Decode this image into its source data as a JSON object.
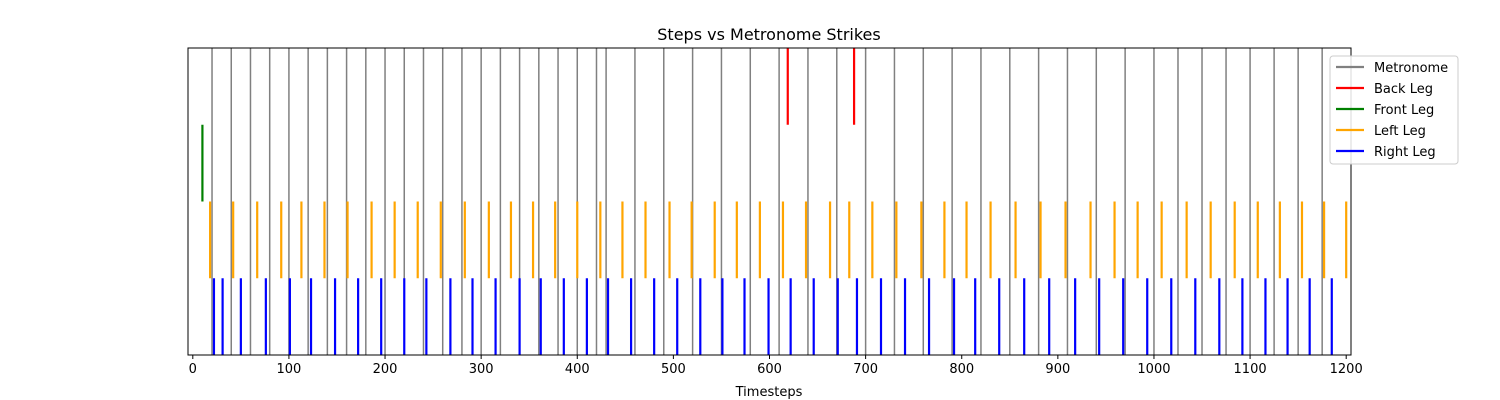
{
  "chart_data": {
    "type": "event-raster",
    "title": "Steps vs Metronome Strikes",
    "xlabel": "Timesteps",
    "ylabel": "",
    "xlim": [
      -5,
      1205
    ],
    "x_ticks": [
      0,
      100,
      200,
      300,
      400,
      500,
      600,
      700,
      800,
      900,
      1000,
      1100,
      1200
    ],
    "grid": false,
    "legend_position": "top-right",
    "series": [
      {
        "name": "Metronome",
        "color": "#808080",
        "y_range": [
          0.0,
          1.0
        ],
        "x": [
          20,
          40,
          60,
          80,
          100,
          120,
          140,
          160,
          180,
          200,
          220,
          240,
          260,
          280,
          300,
          320,
          340,
          360,
          380,
          400,
          420,
          430,
          460,
          490,
          520,
          550,
          580,
          610,
          640,
          670,
          700,
          730,
          760,
          790,
          820,
          850,
          880,
          910,
          940,
          970,
          1000,
          1025,
          1050,
          1075,
          1100,
          1125,
          1150,
          1175
        ]
      },
      {
        "name": "Back Leg",
        "color": "#ff0000",
        "y_range": [
          0.75,
          1.0
        ],
        "x": [
          619,
          688
        ]
      },
      {
        "name": "Front Leg",
        "color": "#008000",
        "y_range": [
          0.5,
          0.75
        ],
        "x": [
          10
        ]
      },
      {
        "name": "Left Leg",
        "color": "#ffa500",
        "y_range": [
          0.25,
          0.5
        ],
        "x": [
          18,
          42,
          67,
          92,
          113,
          137,
          161,
          186,
          210,
          234,
          258,
          283,
          308,
          331,
          354,
          377,
          400,
          424,
          447,
          471,
          496,
          519,
          543,
          566,
          590,
          614,
          638,
          663,
          683,
          707,
          732,
          758,
          782,
          805,
          830,
          856,
          882,
          908,
          934,
          959,
          983,
          1008,
          1034,
          1059,
          1084,
          1108,
          1131,
          1154,
          1177,
          1200
        ]
      },
      {
        "name": "Right Leg",
        "color": "#0000ff",
        "y_range": [
          0.0,
          0.25
        ],
        "x": [
          22,
          31,
          50,
          76,
          101,
          123,
          148,
          172,
          196,
          220,
          243,
          268,
          291,
          315,
          340,
          362,
          386,
          410,
          432,
          456,
          480,
          504,
          528,
          551,
          574,
          599,
          622,
          646,
          671,
          691,
          716,
          741,
          766,
          792,
          814,
          839,
          865,
          891,
          918,
          943,
          968,
          993,
          1018,
          1043,
          1068,
          1092,
          1116,
          1139,
          1162,
          1185
        ]
      }
    ]
  }
}
